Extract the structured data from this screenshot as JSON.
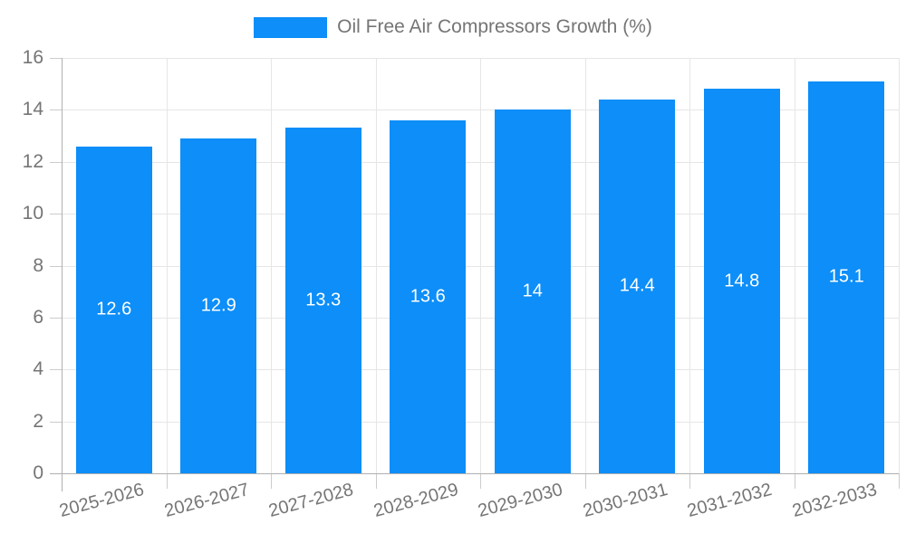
{
  "legend": {
    "label": "Oil Free Air Compressors Growth (%)"
  },
  "colors": {
    "bar": "#0d8ef8",
    "grid": "#e6e6e6",
    "axis": "#b0b0b0",
    "tick": "#cccccc",
    "label_text": "#757575",
    "value_text": "#ffffff",
    "background": "#ffffff"
  },
  "chart_data": {
    "type": "bar",
    "title": "Oil Free Air Compressors Growth (%)",
    "categories": [
      "2025-2026",
      "2026-2027",
      "2027-2028",
      "2028-2029",
      "2029-2030",
      "2030-2031",
      "2031-2032",
      "2032-2033"
    ],
    "values": [
      12.6,
      12.9,
      13.3,
      13.6,
      14,
      14.4,
      14.8,
      15.1
    ],
    "value_labels": [
      "12.6",
      "12.9",
      "13.3",
      "13.6",
      "14",
      "14.4",
      "14.8",
      "15.1"
    ],
    "xlabel": "",
    "ylabel": "",
    "ylim": [
      0,
      16
    ],
    "ytick_step": 2,
    "ytick_labels": [
      "0",
      "2",
      "4",
      "6",
      "8",
      "10",
      "12",
      "14",
      "16"
    ],
    "grid": true,
    "legend_position": "top",
    "xtick_rotation_deg": -15
  }
}
